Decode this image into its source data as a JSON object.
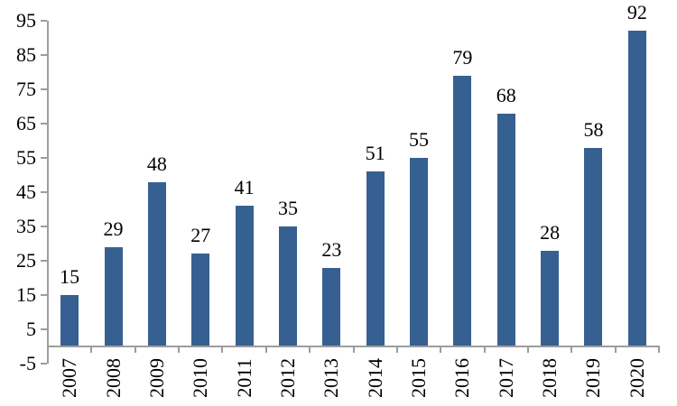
{
  "chart_data": {
    "type": "bar",
    "title": "",
    "xlabel": "",
    "ylabel": "",
    "categories": [
      "2007",
      "2008",
      "2009",
      "2010",
      "2011",
      "2012",
      "2013",
      "2014",
      "2015",
      "2016",
      "2017",
      "2018",
      "2019",
      "2020"
    ],
    "values": [
      15,
      29,
      48,
      27,
      41,
      35,
      23,
      51,
      55,
      79,
      68,
      28,
      58,
      92
    ],
    "data_labels": [
      15,
      29,
      48,
      27,
      41,
      35,
      23,
      51,
      55,
      79,
      68,
      28,
      58,
      92
    ],
    "ylim": [
      -5,
      95
    ],
    "yticks": [
      95,
      85,
      75,
      65,
      55,
      45,
      35,
      25,
      15,
      5,
      -5
    ],
    "grid": false,
    "legend": "none",
    "bar_color": "#376092",
    "axis_color": "#9d9d9d",
    "text_color": "#000000"
  }
}
